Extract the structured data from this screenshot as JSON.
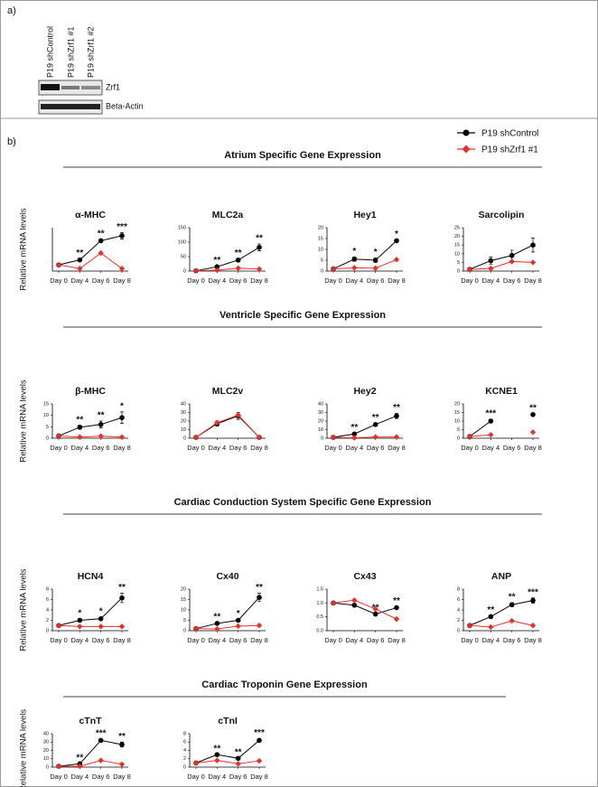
{
  "panel_a": {
    "label": "a)",
    "lanes": [
      "P19 shControl",
      "P19 shZrf1 #1",
      "P19 shZrf1 #2"
    ],
    "bands": [
      "Zrf1",
      "Beta-Actin"
    ]
  },
  "panel_b": {
    "label": "b)",
    "sections": [
      "Atrium  Specific Gene Expression",
      "Ventricle Specific Gene Expression",
      "Cardiac Conduction System Specific Gene Expression",
      "Cardiac Troponin Gene Expression"
    ]
  },
  "chart_data": [
    {
      "type": "line",
      "title": "α-MHC",
      "ylabel": "Relative mRNA levels",
      "categories": [
        "Day 0",
        "Day 4",
        "Day 6",
        "Day 8"
      ],
      "ylim": [
        0,
        7
      ],
      "series": [
        {
          "name": "P19 shControl",
          "color": "#000000",
          "marker": "circle",
          "values": [
            1,
            1.8,
            4.9,
            5.7
          ],
          "errors": [
            0,
            0.2,
            0.2,
            0.5
          ],
          "stars": [
            null,
            "**",
            "**",
            "***"
          ]
        },
        {
          "name": "P19 shZrf1 #1",
          "color": "#e8302a",
          "marker": "diamond",
          "values": [
            1,
            0.4,
            2.9,
            0.4
          ]
        }
      ]
    },
    {
      "type": "line",
      "title": "MLC2a",
      "categories": [
        "Day 0",
        "Day 4",
        "Day 6",
        "Day 8"
      ],
      "ylim": [
        0,
        150
      ],
      "yticks": [
        0,
        50,
        100,
        150
      ],
      "series": [
        {
          "name": "P19 shControl",
          "color": "#000000",
          "marker": "circle",
          "values": [
            1,
            15,
            38,
            82
          ],
          "errors": [
            0,
            3,
            4,
            12
          ],
          "stars": [
            null,
            "**",
            "**",
            "**"
          ]
        },
        {
          "name": "P19 shZrf1 #1",
          "color": "#e8302a",
          "marker": "diamond",
          "values": [
            1,
            3,
            10,
            7
          ]
        }
      ]
    },
    {
      "type": "line",
      "title": "Hey1",
      "categories": [
        "Day 0",
        "Day 4",
        "Day 6",
        "Day 8"
      ],
      "ylim": [
        0,
        20
      ],
      "yticks": [
        0,
        5,
        10,
        15,
        20
      ],
      "series": [
        {
          "name": "P19 shControl",
          "color": "#000000",
          "marker": "circle",
          "values": [
            1,
            5.5,
            5,
            14
          ],
          "errors": [
            0,
            1,
            1,
            0.5
          ],
          "stars": [
            null,
            "*",
            "*",
            "*"
          ]
        },
        {
          "name": "P19 shZrf1 #1",
          "color": "#e8302a",
          "marker": "diamond",
          "values": [
            1,
            1.5,
            1.3,
            5.3
          ]
        }
      ]
    },
    {
      "type": "line",
      "title": "Sarcolipin",
      "categories": [
        "Day 0",
        "Day 4",
        "Day 6",
        "Day 8"
      ],
      "ylim": [
        0,
        25
      ],
      "yticks": [
        0,
        5,
        10,
        15,
        20,
        25
      ],
      "series": [
        {
          "name": "P19 shControl",
          "color": "#000000",
          "marker": "circle",
          "values": [
            1,
            6,
            9,
            15
          ],
          "errors": [
            0,
            2,
            3,
            4
          ]
        },
        {
          "name": "P19 shZrf1 #1",
          "color": "#e8302a",
          "marker": "diamond",
          "values": [
            1,
            1.5,
            5.5,
            5
          ]
        }
      ]
    },
    {
      "type": "line",
      "title": "β-MHC",
      "ylabel": "Relative mRNA levels",
      "categories": [
        "Day 0",
        "Day 4",
        "Day 6",
        "Day 8"
      ],
      "ylim": [
        0,
        15
      ],
      "yticks": [
        0,
        5,
        10,
        15
      ],
      "series": [
        {
          "name": "P19 shControl",
          "color": "#000000",
          "marker": "circle",
          "values": [
            1,
            4.8,
            6,
            9
          ],
          "errors": [
            0,
            0.8,
            1.5,
            2.5
          ],
          "stars": [
            null,
            "**",
            "**",
            "*"
          ]
        },
        {
          "name": "P19 shZrf1 #1",
          "color": "#e8302a",
          "marker": "diamond",
          "values": [
            1,
            0.5,
            0.9,
            0.5
          ]
        }
      ]
    },
    {
      "type": "line",
      "title": "MLC2v",
      "categories": [
        "Day 0",
        "Day 4",
        "Day 6",
        "Day 8"
      ],
      "ylim": [
        0,
        40
      ],
      "yticks": [
        0,
        10,
        20,
        30,
        40
      ],
      "series": [
        {
          "name": "P19 shControl",
          "color": "#000000",
          "marker": "circle",
          "values": [
            1,
            17,
            26,
            1
          ],
          "errors": [
            0,
            3,
            4,
            0
          ]
        },
        {
          "name": "P19 shZrf1 #1",
          "color": "#e8302a",
          "marker": "diamond",
          "values": [
            1,
            18,
            27,
            1
          ]
        }
      ]
    },
    {
      "type": "line",
      "title": "Hey2",
      "categories": [
        "Day 0",
        "Day 4",
        "Day 6",
        "Day 8"
      ],
      "ylim": [
        0,
        40
      ],
      "yticks": [
        0,
        10,
        20,
        30,
        40
      ],
      "series": [
        {
          "name": "P19 shControl",
          "color": "#000000",
          "marker": "circle",
          "values": [
            1,
            5,
            16,
            26
          ],
          "errors": [
            0,
            1,
            1.5,
            3
          ],
          "stars": [
            null,
            "**",
            "**",
            "**"
          ]
        },
        {
          "name": "P19 shZrf1 #1",
          "color": "#e8302a",
          "marker": "diamond",
          "values": [
            1,
            0.5,
            1.5,
            1.5
          ]
        }
      ]
    },
    {
      "type": "line",
      "title": "KCNE1",
      "categories": [
        "Day 0",
        "Day 4",
        "Day 6",
        "Day 8"
      ],
      "ylim": [
        0,
        20
      ],
      "yticks": [
        0,
        5,
        10,
        15,
        20
      ],
      "series": [
        {
          "name": "P19 shControl",
          "color": "#000000",
          "marker": "circle",
          "values": [
            1,
            10,
            null,
            13.8
          ],
          "errors": [
            0,
            1,
            null,
            0.5
          ],
          "stars": [
            null,
            "***",
            null,
            "**"
          ]
        },
        {
          "name": "P19 shZrf1 #1",
          "color": "#e8302a",
          "marker": "diamond",
          "values": [
            1,
            2,
            null,
            3.5
          ]
        }
      ]
    },
    {
      "type": "line",
      "title": "HCN4",
      "ylabel": "Relative mRNA levels",
      "categories": [
        "Day 0",
        "Day 4",
        "Day 6",
        "Day 8"
      ],
      "ylim": [
        0,
        8
      ],
      "yticks": [
        0,
        2,
        4,
        6,
        8
      ],
      "series": [
        {
          "name": "P19 shControl",
          "color": "#000000",
          "marker": "circle",
          "values": [
            1,
            2,
            2.3,
            6.3
          ],
          "errors": [
            0,
            0.3,
            0.3,
            0.9
          ],
          "stars": [
            null,
            "*",
            "*",
            "**"
          ]
        },
        {
          "name": "P19 shZrf1 #1",
          "color": "#e8302a",
          "marker": "diamond",
          "values": [
            1,
            0.8,
            0.8,
            0.8
          ]
        }
      ]
    },
    {
      "type": "line",
      "title": "Cx40",
      "categories": [
        "Day 0",
        "Day 4",
        "Day 6",
        "Day 8"
      ],
      "ylim": [
        0,
        20
      ],
      "yticks": [
        0,
        5,
        10,
        15,
        20
      ],
      "series": [
        {
          "name": "P19 shControl",
          "color": "#000000",
          "marker": "circle",
          "values": [
            1,
            3.5,
            5,
            16
          ],
          "errors": [
            0,
            0.4,
            0.5,
            2
          ],
          "stars": [
            null,
            "**",
            "*",
            "**"
          ]
        },
        {
          "name": "P19 shZrf1 #1",
          "color": "#e8302a",
          "marker": "diamond",
          "values": [
            1,
            0.8,
            2.2,
            2.5
          ]
        }
      ]
    },
    {
      "type": "line",
      "title": "Cx43",
      "categories": [
        "Day 0",
        "Day 4",
        "Day 6",
        "Day 8"
      ],
      "ylim": [
        0,
        1.5
      ],
      "yticks": [
        {
          "value": 0,
          "label": "0.0"
        },
        {
          "value": 0.5,
          "label": "0.5"
        },
        {
          "value": 1,
          "label": "1.0"
        },
        {
          "value": 1.5,
          "label": "1.5"
        }
      ],
      "series": [
        {
          "name": "P19 shControl",
          "color": "#000000",
          "marker": "circle",
          "values": [
            1,
            0.92,
            0.6,
            0.83
          ],
          "errors": [
            0,
            0.02,
            0.02,
            0.04
          ],
          "stars": [
            null,
            null,
            "**",
            "**"
          ]
        },
        {
          "name": "P19 shZrf1 #1",
          "color": "#e8302a",
          "marker": "diamond",
          "values": [
            1,
            1.1,
            0.78,
            0.42
          ]
        }
      ]
    },
    {
      "type": "line",
      "title": "ANP",
      "categories": [
        "Day 0",
        "Day 4",
        "Day 6",
        "Day 8"
      ],
      "ylim": [
        0,
        8
      ],
      "yticks": [
        0,
        2,
        4,
        6,
        8
      ],
      "series": [
        {
          "name": "P19 shControl",
          "color": "#000000",
          "marker": "circle",
          "values": [
            1,
            2.7,
            5,
            5.8
          ],
          "errors": [
            0,
            0.2,
            0.4,
            0.5
          ],
          "stars": [
            null,
            "**",
            "**",
            "***"
          ]
        },
        {
          "name": "P19 shZrf1 #1",
          "color": "#e8302a",
          "marker": "diamond",
          "values": [
            1,
            0.7,
            1.9,
            1
          ]
        }
      ]
    },
    {
      "type": "line",
      "title": "cTnT",
      "ylabel": "Relative mRNA levels",
      "categories": [
        "Day 0",
        "Day 4",
        "Day 6",
        "Day 8"
      ],
      "ylim": [
        0,
        40
      ],
      "yticks": [
        0,
        10,
        20,
        30,
        40
      ],
      "series": [
        {
          "name": "P19 shControl",
          "color": "#000000",
          "marker": "circle",
          "values": [
            1,
            4,
            32,
            27
          ],
          "errors": [
            0,
            0.5,
            1.5,
            3
          ],
          "stars": [
            null,
            "**",
            "***",
            "**"
          ]
        },
        {
          "name": "P19 shZrf1 #1",
          "color": "#e8302a",
          "marker": "diamond",
          "values": [
            1,
            1,
            8,
            3.5
          ]
        }
      ]
    },
    {
      "type": "line",
      "title": "cTnI",
      "categories": [
        "Day 0",
        "Day 4",
        "Day 6",
        "Day 8"
      ],
      "ylim": [
        0,
        8
      ],
      "yticks": [
        0,
        2,
        4,
        6,
        8
      ],
      "series": [
        {
          "name": "P19 shControl",
          "color": "#000000",
          "marker": "circle",
          "values": [
            1,
            3,
            2.1,
            6.4
          ],
          "errors": [
            0,
            0.1,
            0.1,
            0.4
          ],
          "stars": [
            null,
            "**",
            "**",
            "***"
          ]
        },
        {
          "name": "P19 shZrf1 #1",
          "color": "#e8302a",
          "marker": "diamond",
          "values": [
            1,
            1.6,
            0.8,
            1.5
          ]
        }
      ]
    }
  ]
}
